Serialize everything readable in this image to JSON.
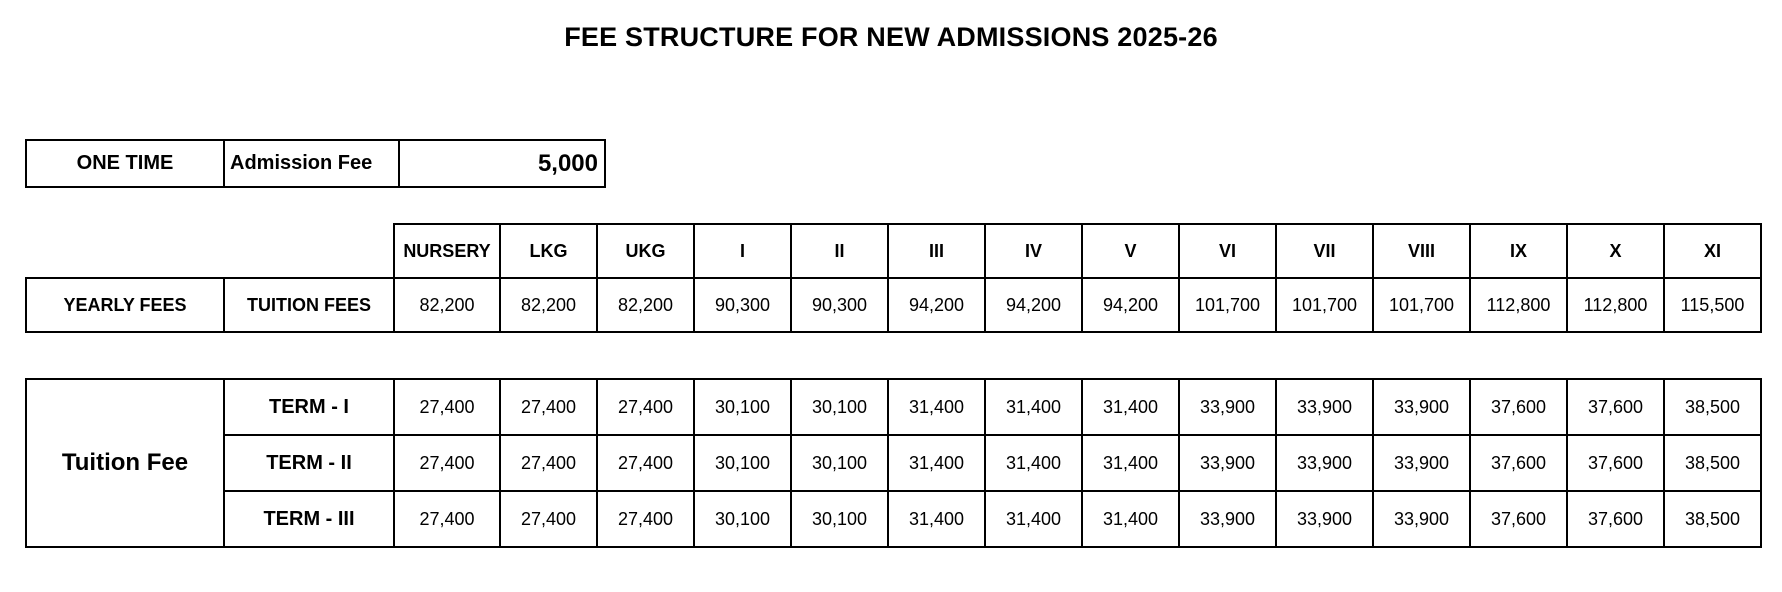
{
  "title": "FEE STRUCTURE FOR NEW ADMISSIONS 2025-26",
  "one_time": {
    "label": "ONE TIME",
    "fee_name": "Admission Fee",
    "amount": "5,000"
  },
  "classes": [
    "NURSERY",
    "LKG",
    "UKG",
    "I",
    "II",
    "III",
    "IV",
    "V",
    "VI",
    "VII",
    "VIII",
    "IX",
    "X",
    "XI"
  ],
  "yearly": {
    "label": "YEARLY FEES",
    "fee_name": "TUITION FEES",
    "values": [
      "82,200",
      "82,200",
      "82,200",
      "90,300",
      "90,300",
      "94,200",
      "94,200",
      "94,200",
      "101,700",
      "101,700",
      "101,700",
      "112,800",
      "112,800",
      "115,500"
    ]
  },
  "terms": {
    "label": "Tuition Fee",
    "rows": [
      {
        "name": "TERM - I",
        "values": [
          "27,400",
          "27,400",
          "27,400",
          "30,100",
          "30,100",
          "31,400",
          "31,400",
          "31,400",
          "33,900",
          "33,900",
          "33,900",
          "37,600",
          "37,600",
          "38,500"
        ]
      },
      {
        "name": "TERM - II",
        "values": [
          "27,400",
          "27,400",
          "27,400",
          "30,100",
          "30,100",
          "31,400",
          "31,400",
          "31,400",
          "33,900",
          "33,900",
          "33,900",
          "37,600",
          "37,600",
          "38,500"
        ]
      },
      {
        "name": "TERM - III",
        "values": [
          "27,400",
          "27,400",
          "27,400",
          "30,100",
          "30,100",
          "31,400",
          "31,400",
          "31,400",
          "33,900",
          "33,900",
          "33,900",
          "37,600",
          "37,600",
          "38,500"
        ]
      }
    ]
  }
}
